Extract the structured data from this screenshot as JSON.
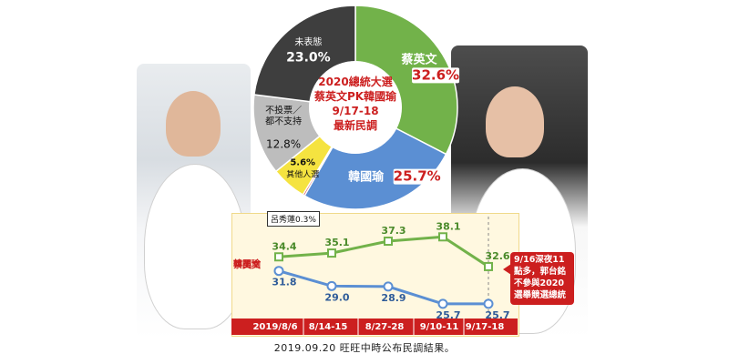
{
  "caption": "2019.09.20 旺旺中時公布民調結果。",
  "note": "9/16深夜11點多，郭台銘不參與2020選舉競選總統",
  "colors": {
    "green": "#72b24a",
    "blue": "#5b8fd3",
    "gray": "#bdbdbd",
    "dark": "#3e3e3e",
    "yellow": "#f5e340",
    "red": "#cc1f1f"
  },
  "chart_data": [
    {
      "type": "pie",
      "title": "2020總統大選\n蔡英文PK韓國瑜\n9/17-18\n最新民調",
      "slices": [
        {
          "label": "蔡英文",
          "value": 32.6,
          "color": "#72b24a",
          "text": "32.6%"
        },
        {
          "label": "韓國瑜",
          "value": 25.7,
          "color": "#5b8fd3",
          "text": "25.7%"
        },
        {
          "label": "呂秀蓮",
          "value": 0.3,
          "color": "#cc1f1f",
          "text": "0.3%"
        },
        {
          "label": "其他人選",
          "value": 5.6,
          "color": "#f5e340",
          "text": "5.6%"
        },
        {
          "label": "不投票／\n都不支持",
          "value": 12.8,
          "color": "#bdbdbd",
          "text": "12.8%"
        },
        {
          "label": "未表態",
          "value": 23.0,
          "color": "#3e3e3e",
          "text": "23.0%"
        }
      ]
    },
    {
      "type": "line",
      "categories": [
        "2019/8/6",
        "8/14-15",
        "8/27-28",
        "9/10-11",
        "9/17-18"
      ],
      "series": [
        {
          "name": "蔡英文",
          "color": "#72b24a",
          "values": [
            34.4,
            35.1,
            37.3,
            38.1,
            32.6
          ]
        },
        {
          "name": "韓國瑜",
          "color": "#5b8fd3",
          "values": [
            31.8,
            29.0,
            28.9,
            25.7,
            25.7
          ]
        }
      ]
    }
  ]
}
